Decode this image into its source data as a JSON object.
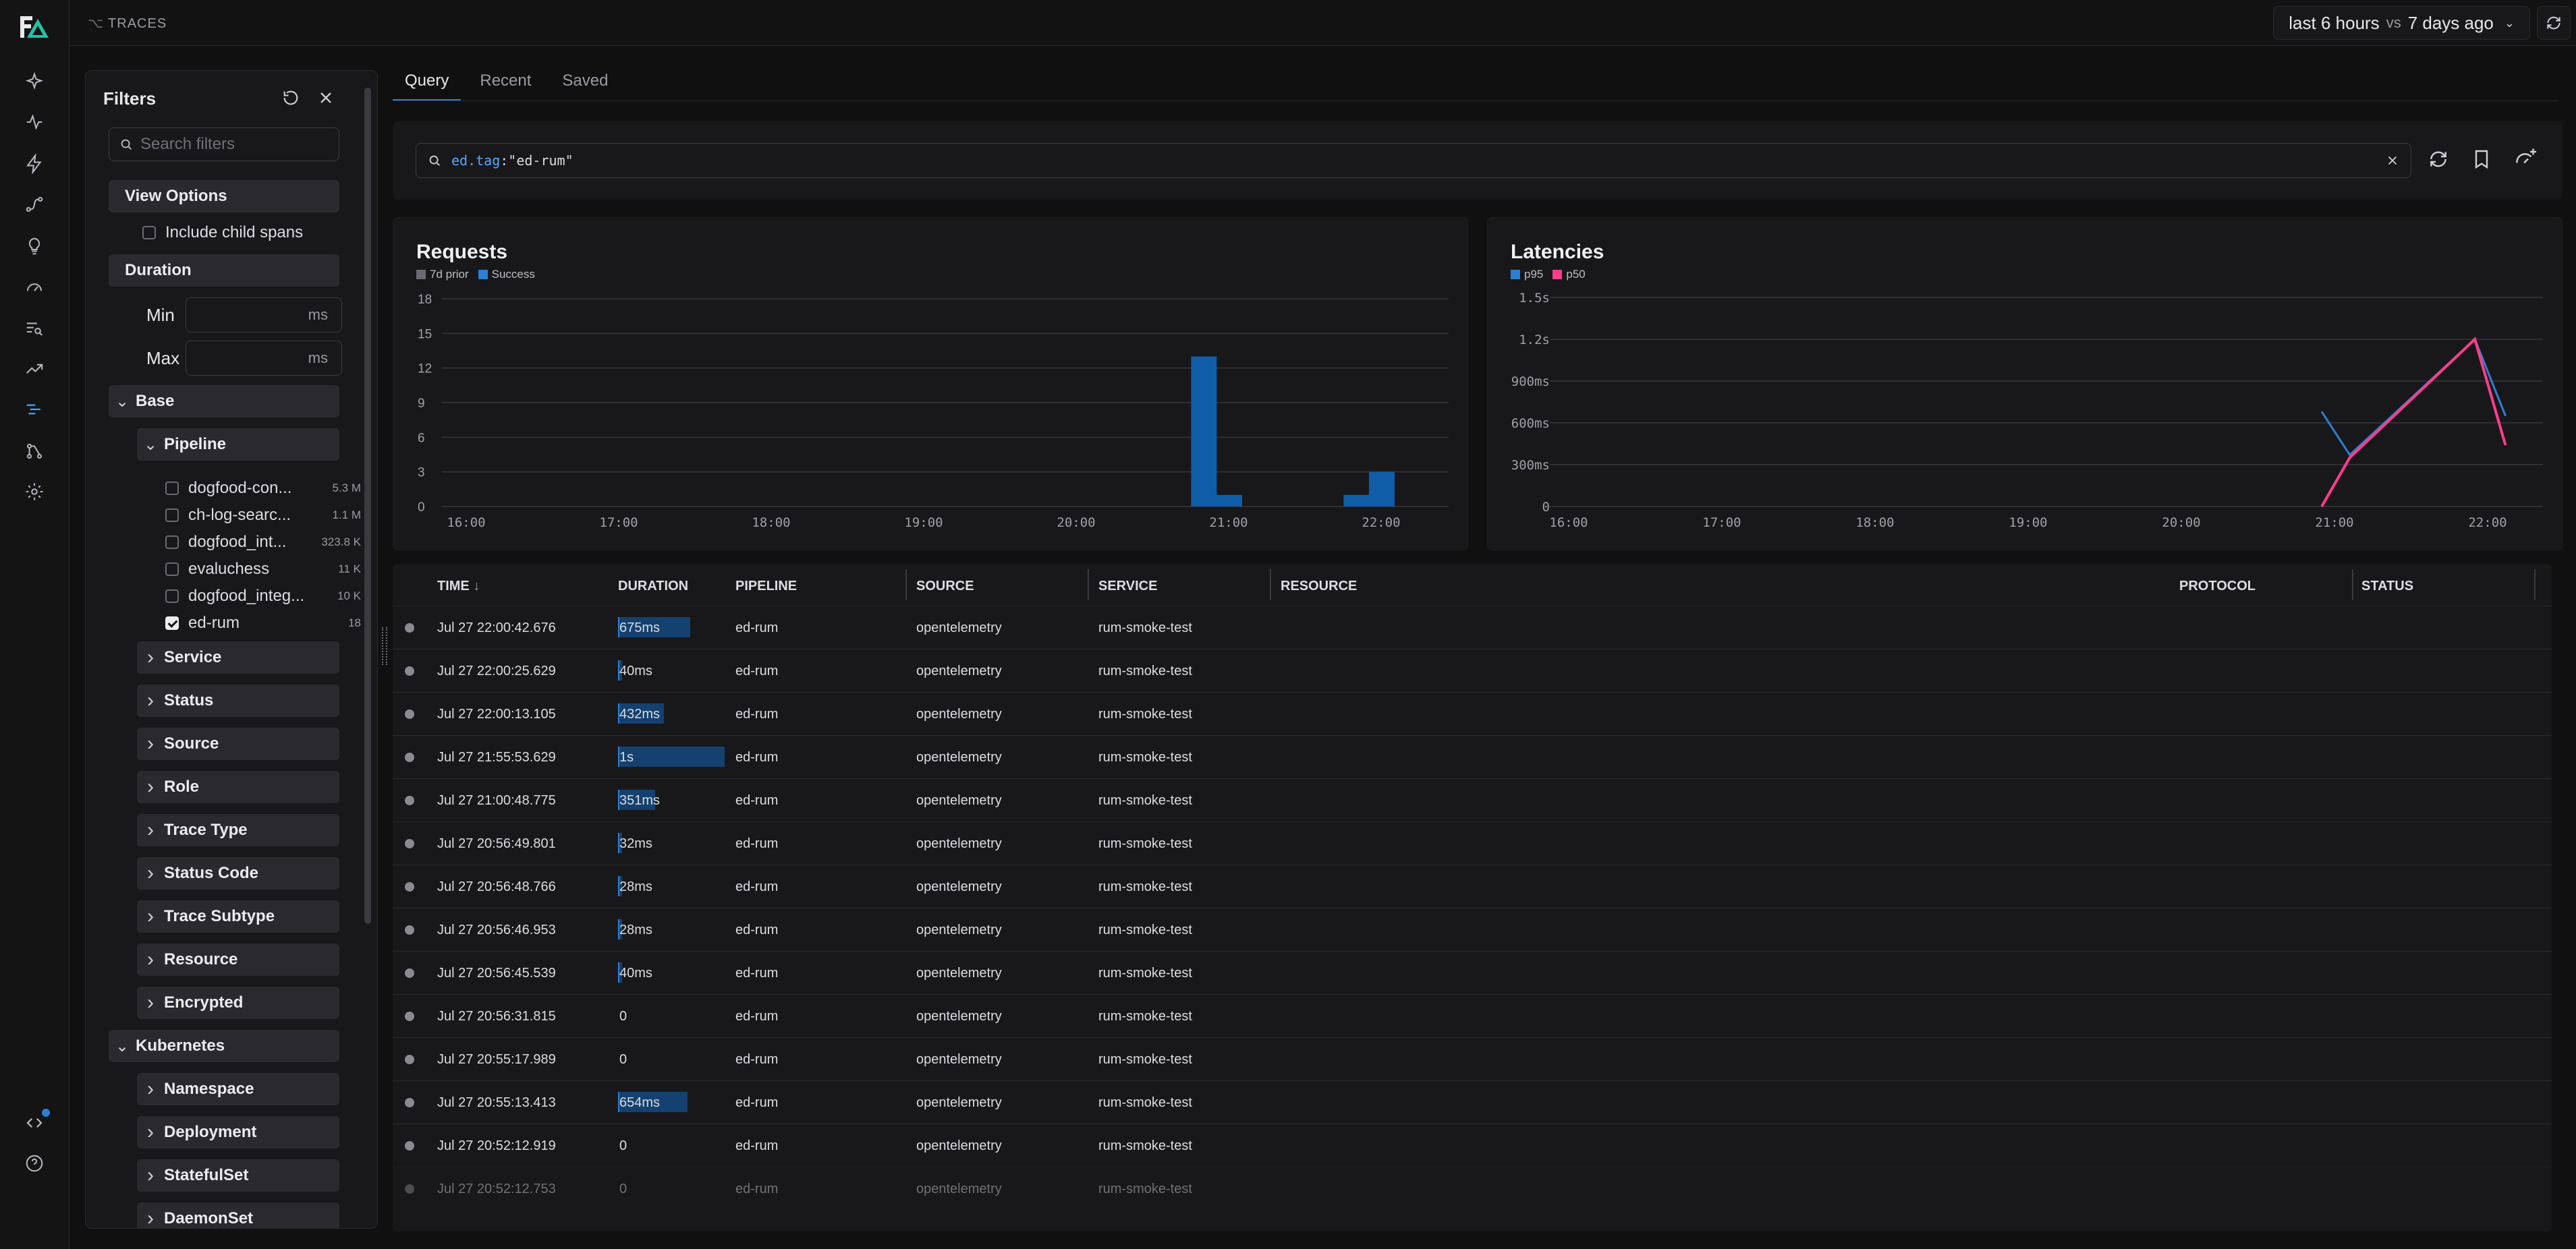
{
  "app": {
    "breadcrumb": "TRACES"
  },
  "colors": {
    "accent": "#2d7fd3",
    "p50": "#ff3d8b",
    "p95": "#2d7fd3",
    "prior": "#6a6a72"
  },
  "header": {
    "time_range": "last 6 hours",
    "vs_label": "vs",
    "compare_range": "7 days ago"
  },
  "rail": {
    "icons": [
      "logo-icon",
      "sparkle-icon",
      "activity-icon",
      "bolt-icon",
      "route-icon",
      "lightbulb-icon",
      "gauge-icon",
      "list-search-icon",
      "trending-icon",
      "traces-icon",
      "workflow-icon",
      "settings-icon",
      "code-icon",
      "help-icon"
    ]
  },
  "filters": {
    "title": "Filters",
    "search_placeholder": "Search filters",
    "view_options": "View Options",
    "include_child_spans": "Include child spans",
    "duration": "Duration",
    "min_label": "Min",
    "max_label": "Max",
    "unit": "ms",
    "base": "Base",
    "pipeline": "Pipeline",
    "pipelines": [
      {
        "name": "dogfood-con...",
        "count": "5.3 M",
        "checked": false
      },
      {
        "name": "ch-log-searc...",
        "count": "1.1 M",
        "checked": false
      },
      {
        "name": "dogfood_int...",
        "count": "323.8 K",
        "checked": false
      },
      {
        "name": "evaluchess",
        "count": "11 K",
        "checked": false
      },
      {
        "name": "dogfood_integ...",
        "count": "10 K",
        "checked": false
      },
      {
        "name": "ed-rum",
        "count": "18",
        "checked": true
      }
    ],
    "base_items": [
      "Service",
      "Status",
      "Source",
      "Role",
      "Trace Type",
      "Status Code",
      "Trace Subtype",
      "Resource",
      "Encrypted"
    ],
    "kubernetes": "Kubernetes",
    "k8s_items": [
      "Namespace",
      "Deployment",
      "StatefulSet",
      "DaemonSet"
    ]
  },
  "tabs": [
    "Query",
    "Recent",
    "Saved"
  ],
  "query": {
    "key": "ed.tag",
    "value": ":\"ed-rum\""
  },
  "chart_data": [
    {
      "type": "bar",
      "title": "Requests",
      "legend": [
        "7d prior",
        "Success"
      ],
      "y_ticks": [
        "18",
        "15",
        "12",
        "9",
        "6",
        "3",
        "0"
      ],
      "x_ticks": [
        "16:00",
        "17:00",
        "18:00",
        "19:00",
        "20:00",
        "21:00",
        "22:00"
      ],
      "ylim": [
        0,
        18
      ],
      "series": [
        {
          "name": "Success",
          "points": [
            {
              "x": "20:50",
              "y": 13
            },
            {
              "x": "21:00",
              "y": 1
            },
            {
              "x": "21:50",
              "y": 1
            },
            {
              "x": "22:00",
              "y": 3
            }
          ]
        },
        {
          "name": "7d prior",
          "points": []
        }
      ]
    },
    {
      "type": "line",
      "title": "Latencies",
      "legend": [
        "p95",
        "p50"
      ],
      "y_ticks": [
        "1.5s",
        "1.2s",
        "900ms",
        "600ms",
        "300ms",
        "0"
      ],
      "x_ticks": [
        "16:00",
        "17:00",
        "18:00",
        "19:00",
        "20:00",
        "21:00",
        "22:00"
      ],
      "ylim": [
        0,
        1.5
      ],
      "series": [
        {
          "name": "p95",
          "points": [
            {
              "x": "20:55",
              "y": 0.68
            },
            {
              "x": "21:06",
              "y": 0.37
            },
            {
              "x": "21:55",
              "y": 1.2
            },
            {
              "x": "22:07",
              "y": 0.65
            }
          ]
        },
        {
          "name": "p50",
          "points": [
            {
              "x": "20:55",
              "y": 0.0
            },
            {
              "x": "21:06",
              "y": 0.35
            },
            {
              "x": "21:55",
              "y": 1.2
            },
            {
              "x": "22:07",
              "y": 0.44
            }
          ]
        }
      ]
    }
  ],
  "table": {
    "columns": [
      "TIME",
      "DURATION",
      "PIPELINE",
      "SOURCE",
      "SERVICE",
      "RESOURCE",
      "PROTOCOL",
      "STATUS"
    ],
    "rows": [
      {
        "time": "Jul 27 22:00:42.676",
        "duration": "675ms",
        "frac": 0.675,
        "pipeline": "ed-rum",
        "source": "opentelemetry",
        "service": "rum-smoke-test"
      },
      {
        "time": "Jul 27 22:00:25.629",
        "duration": "40ms",
        "frac": 0.04,
        "pipeline": "ed-rum",
        "source": "opentelemetry",
        "service": "rum-smoke-test"
      },
      {
        "time": "Jul 27 22:00:13.105",
        "duration": "432ms",
        "frac": 0.432,
        "pipeline": "ed-rum",
        "source": "opentelemetry",
        "service": "rum-smoke-test"
      },
      {
        "time": "Jul 27 21:55:53.629",
        "duration": "1s",
        "frac": 1.0,
        "pipeline": "ed-rum",
        "source": "opentelemetry",
        "service": "rum-smoke-test"
      },
      {
        "time": "Jul 27 21:00:48.775",
        "duration": "351ms",
        "frac": 0.351,
        "pipeline": "ed-rum",
        "source": "opentelemetry",
        "service": "rum-smoke-test"
      },
      {
        "time": "Jul 27 20:56:49.801",
        "duration": "32ms",
        "frac": 0.032,
        "pipeline": "ed-rum",
        "source": "opentelemetry",
        "service": "rum-smoke-test"
      },
      {
        "time": "Jul 27 20:56:48.766",
        "duration": "28ms",
        "frac": 0.028,
        "pipeline": "ed-rum",
        "source": "opentelemetry",
        "service": "rum-smoke-test"
      },
      {
        "time": "Jul 27 20:56:46.953",
        "duration": "28ms",
        "frac": 0.028,
        "pipeline": "ed-rum",
        "source": "opentelemetry",
        "service": "rum-smoke-test"
      },
      {
        "time": "Jul 27 20:56:45.539",
        "duration": "40ms",
        "frac": 0.04,
        "pipeline": "ed-rum",
        "source": "opentelemetry",
        "service": "rum-smoke-test"
      },
      {
        "time": "Jul 27 20:56:31.815",
        "duration": "0",
        "frac": 0,
        "pipeline": "ed-rum",
        "source": "opentelemetry",
        "service": "rum-smoke-test"
      },
      {
        "time": "Jul 27 20:55:17.989",
        "duration": "0",
        "frac": 0,
        "pipeline": "ed-rum",
        "source": "opentelemetry",
        "service": "rum-smoke-test"
      },
      {
        "time": "Jul 27 20:55:13.413",
        "duration": "654ms",
        "frac": 0.654,
        "pipeline": "ed-rum",
        "source": "opentelemetry",
        "service": "rum-smoke-test"
      },
      {
        "time": "Jul 27 20:52:12.919",
        "duration": "0",
        "frac": 0,
        "pipeline": "ed-rum",
        "source": "opentelemetry",
        "service": "rum-smoke-test"
      },
      {
        "time": "Jul 27 20:52:12.753",
        "duration": "0",
        "frac": 0,
        "pipeline": "ed-rum",
        "source": "opentelemetry",
        "service": "rum-smoke-test"
      }
    ]
  }
}
